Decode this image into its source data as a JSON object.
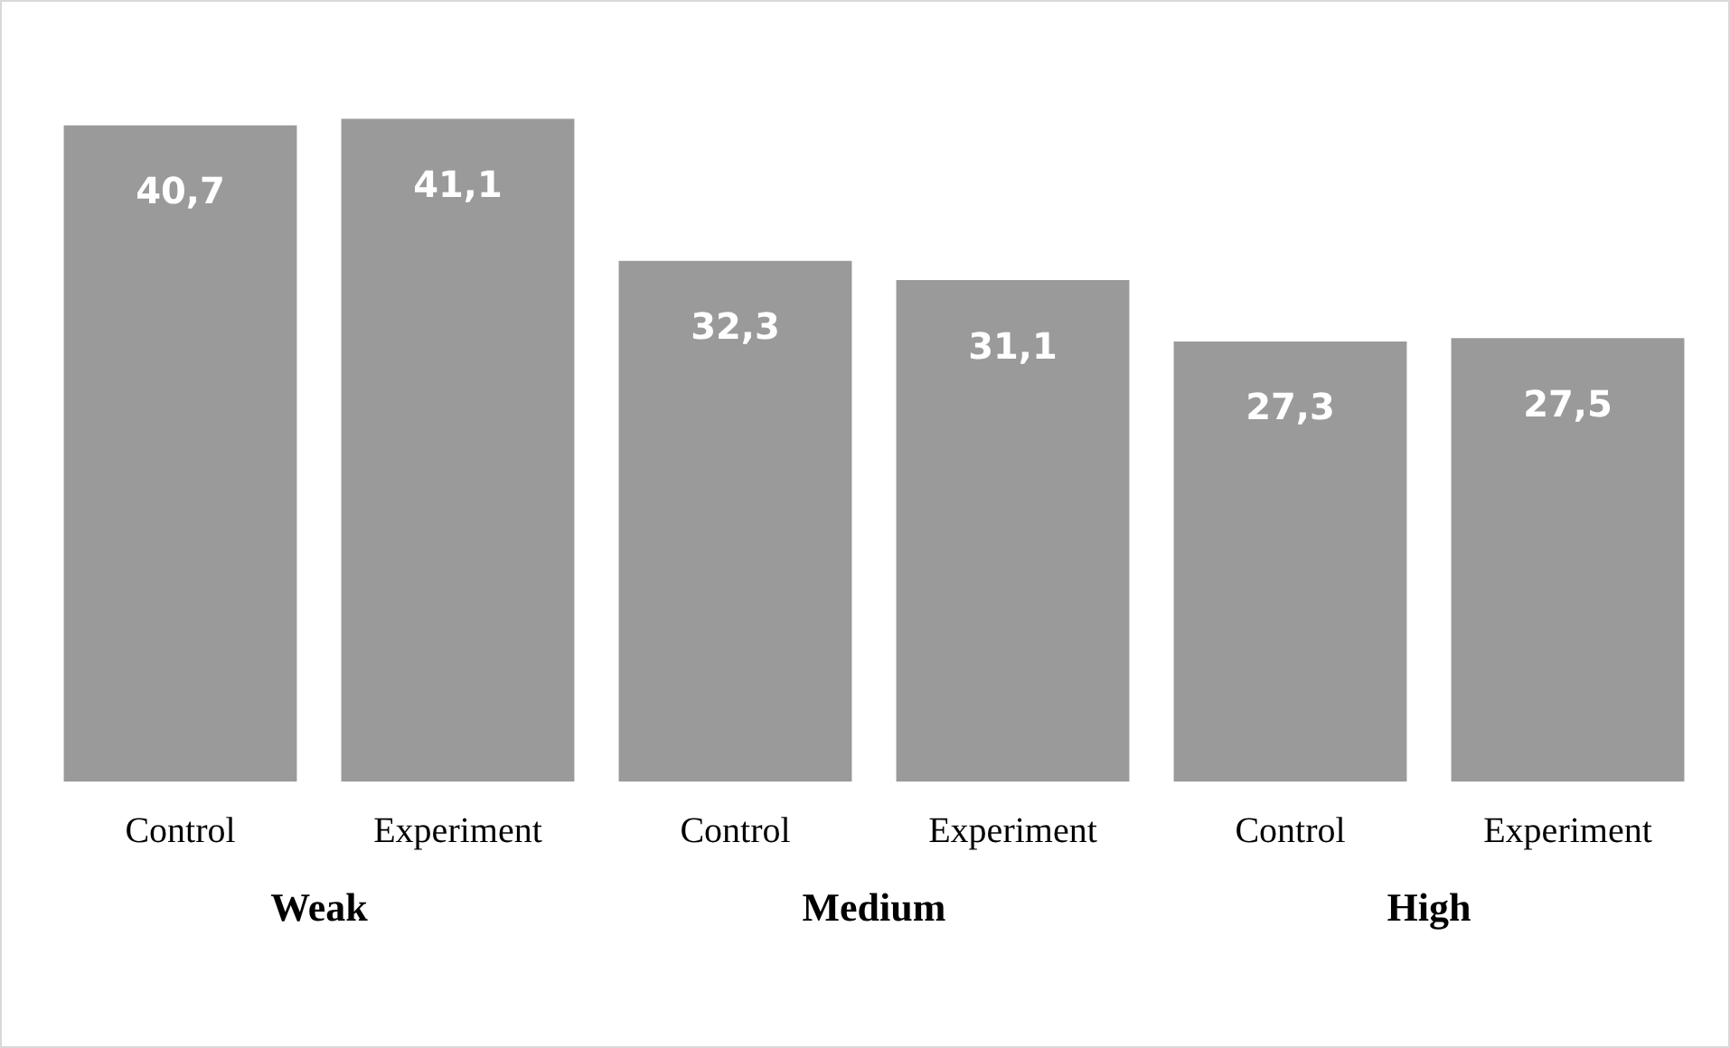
{
  "chart_data": {
    "type": "bar",
    "categories": [
      "Weak",
      "Medium",
      "High"
    ],
    "series": [
      {
        "name": "Control",
        "color": "#9a9a9a",
        "values": [
          40.7,
          32.3,
          27.3
        ],
        "value_labels": [
          "40,7",
          "32,3",
          "27,3"
        ]
      },
      {
        "name": "Experiment",
        "color": "#9a9a9a",
        "values": [
          41.1,
          31.1,
          27.5
        ],
        "value_labels": [
          "41,1",
          "31,1",
          "27,5"
        ]
      }
    ],
    "legend": false,
    "grid": false
  }
}
